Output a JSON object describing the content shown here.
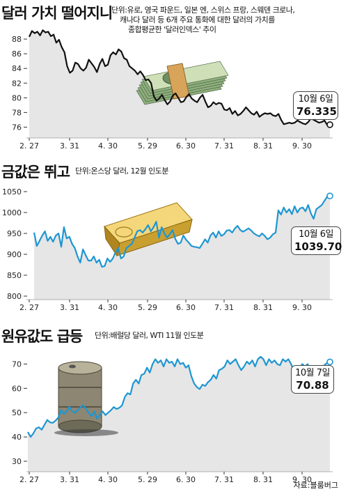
{
  "source": "자료:블룸버그",
  "chart_data": [
    {
      "type": "line",
      "title": "달러 가치 떨어지니",
      "subtitle": "단위:유로, 영국 파운드, 일본 엔, 스위스 프랑, 스웨덴 크로나, 캐나다 달러 등 6개 주요 통화에 대한 달러의 가치를 종합평균한 '달러인덱스' 추이",
      "subtitle_lines": [
        "단위:유로, 영국 파운드, 일본 엔, 스위스 프랑, 스웨덴 크로나,",
        "캐나다 달러 등 6개 주요 통화에 대한 달러의 가치를",
        "종합평균한 '달러인덱스' 추이"
      ],
      "x_ticks": [
        "2. 27",
        "3. 31",
        "4. 30",
        "5. 29",
        "6. 30",
        "7. 31",
        "8. 31",
        "9. 30"
      ],
      "y_ticks": [
        76,
        78,
        80,
        82,
        84,
        86,
        88
      ],
      "ylim": [
        75,
        90
      ],
      "series": [
        {
          "values": [
            88.3,
            89.1,
            88.8,
            89.0,
            88.5,
            89.2,
            88.9,
            89.0,
            88.4,
            88.6,
            87.5,
            87.9,
            86.9,
            86.2,
            84.3,
            83.4,
            83.7,
            84.8,
            84.6,
            84.0,
            83.7,
            84.1,
            85.2,
            84.7,
            84.2,
            83.5,
            84.6,
            85.3,
            84.3,
            84.5,
            85.8,
            86.2,
            85.9,
            86.6,
            86.3,
            85.4,
            85.2,
            84.3,
            84.0,
            83.7,
            83.2,
            83.6,
            83.1,
            82.4,
            82.5,
            82.0,
            80.2,
            79.6,
            79.9,
            80.4,
            79.7,
            79.1,
            79.5,
            80.3,
            80.6,
            80.0,
            79.4,
            79.5,
            80.1,
            80.5,
            79.9,
            79.6,
            79.4,
            80.0,
            80.4,
            79.5,
            78.7,
            78.9,
            79.4,
            79.1,
            79.3,
            79.2,
            78.4,
            78.3,
            78.6,
            77.8,
            78.2,
            77.6,
            77.8,
            78.2,
            78.7,
            78.3,
            77.9,
            77.7,
            78.1,
            77.4,
            77.7,
            77.9,
            77.8,
            77.9,
            77.6,
            77.5,
            77.8,
            77.0,
            76.4,
            76.5,
            76.6,
            76.5,
            76.6,
            76.9,
            76.7,
            76.5,
            76.4,
            76.7,
            77.2,
            77.0,
            76.8,
            76.6,
            76.7,
            76.9,
            76.3,
            76.335
          ]
        }
      ],
      "callout": {
        "date": "10월 6일",
        "value": "76.335"
      }
    },
    {
      "type": "area",
      "title": "금값은 뛰고",
      "subtitle": "단위:온스당 달러, 12월 인도분",
      "x_ticks": [
        "2. 27",
        "3. 31",
        "4. 30",
        "5. 29",
        "6. 30",
        "7. 31",
        "8. 31",
        "9. 30"
      ],
      "y_ticks": [
        800,
        850,
        900,
        950,
        1000,
        1050
      ],
      "ylim": [
        800,
        1050
      ],
      "series": [
        {
          "values": [
            952,
            920,
            932,
            945,
            955,
            932,
            942,
            930,
            945,
            950,
            918,
            965,
            938,
            942,
            925,
            915,
            895,
            880,
            912,
            898,
            885,
            885,
            895,
            880,
            887,
            870,
            872,
            890,
            882,
            890,
            905,
            915,
            890,
            895,
            915,
            920,
            925,
            940,
            955,
            958,
            952,
            960,
            970,
            955,
            965,
            978,
            940,
            965,
            950,
            940,
            948,
            958,
            937,
            925,
            928,
            945,
            935,
            928,
            920,
            918,
            917,
            915,
            925,
            936,
            928,
            945,
            952,
            940,
            955,
            944,
            948,
            957,
            958,
            952,
            962,
            968,
            958,
            954,
            958,
            962,
            957,
            950,
            946,
            943,
            950,
            944,
            936,
            940,
            948,
            952,
            1005,
            995,
            1012,
            1000,
            1008,
            996,
            1015,
            1000,
            1010,
            1012,
            1003,
            1018,
            998,
            985,
            1008,
            1013,
            1018,
            1028,
            1038,
            1039.7
          ]
        }
      ],
      "callout": {
        "date": "10월 6일",
        "value": "1039.70"
      }
    },
    {
      "type": "area",
      "title": "원유값도 급등",
      "subtitle": "단위:배럴당 달러, WTI 11월 인도분",
      "x_ticks": [
        "2. 27",
        "3. 31",
        "4. 30",
        "5. 29",
        "6. 30",
        "7. 31",
        "8. 31",
        "9. 30"
      ],
      "y_ticks": [
        30,
        40,
        50,
        60,
        70
      ],
      "ylim": [
        30,
        73
      ],
      "series": [
        {
          "values": [
            42,
            40,
            41.5,
            43.5,
            44,
            43,
            45,
            47,
            46,
            45.8,
            46.7,
            48,
            51,
            49.5,
            50.5,
            52.5,
            50.5,
            50,
            51,
            52.3,
            53,
            51.5,
            49.8,
            48.5,
            50.5,
            47.5,
            49,
            50.5,
            49,
            50,
            51,
            52.3,
            51.5,
            52,
            53,
            56.5,
            58,
            57.5,
            62,
            63.5,
            62,
            65.5,
            66,
            68.5,
            66.5,
            70,
            72,
            70.5,
            71.5,
            69,
            72,
            70.5,
            71,
            69,
            72,
            70,
            70.5,
            68.5,
            69.5,
            65,
            62,
            60.5,
            59.7,
            61.5,
            61,
            62.5,
            63.5,
            65.5,
            64,
            67.5,
            68,
            69,
            71.5,
            70,
            71,
            72,
            69.5,
            67.5,
            69,
            71,
            70,
            71.5,
            69,
            72,
            73,
            72,
            69.5,
            72,
            70.5,
            71.5,
            70,
            69.5,
            72,
            71,
            72,
            70,
            67,
            66.5,
            68,
            70,
            69,
            70,
            66.5,
            68,
            67.5,
            67,
            68.5,
            69.5,
            70.5,
            70.88
          ]
        }
      ],
      "callout": {
        "date": "10월 7일",
        "value": "70.88"
      }
    }
  ]
}
